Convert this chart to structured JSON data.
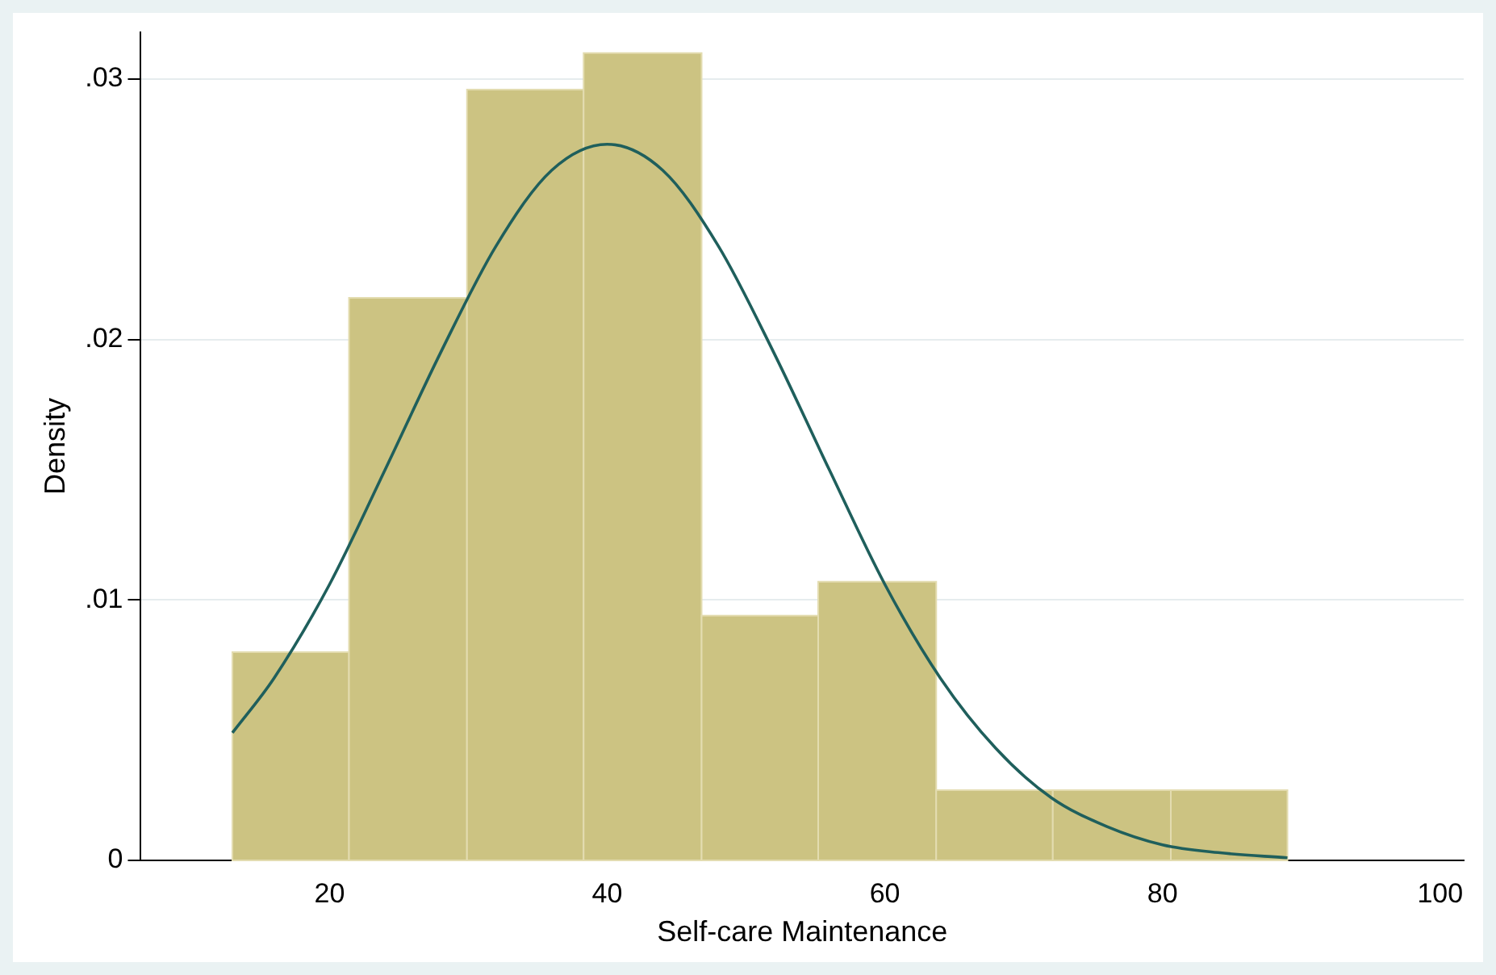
{
  "chart_data": {
    "type": "histogram",
    "xlabel": "Self-care Maintenance",
    "ylabel": "Density",
    "bins": [
      13,
      21.4,
      29.9,
      38.3,
      46.8,
      55.2,
      63.7,
      72.1,
      80.6,
      89.0
    ],
    "values": [
      0.008,
      0.0216,
      0.0296,
      0.031,
      0.0094,
      0.0107,
      0.0027,
      0.0027,
      0.0027
    ],
    "color": "#ccc382",
    "series": [
      {
        "type": "line",
        "color": "#1f5f5c",
        "x": [
          13,
          16,
          20,
          24,
          28,
          32,
          36,
          40,
          44,
          48,
          52,
          56,
          60,
          64,
          68,
          72,
          76,
          80,
          84,
          89
        ],
        "values": [
          0.0049,
          0.007,
          0.0106,
          0.015,
          0.0195,
          0.0236,
          0.0265,
          0.0275,
          0.0265,
          0.0236,
          0.0195,
          0.015,
          0.0106,
          0.007,
          0.0043,
          0.0024,
          0.0013,
          0.0006,
          0.0003,
          0.0001
        ]
      }
    ],
    "xlim": [
      6.4,
      101.7
    ],
    "xticks": [
      20,
      40,
      60,
      80,
      100
    ],
    "ylim": [
      0,
      0.0318
    ],
    "yticks": [
      {
        "value": 0,
        "label": "0"
      },
      {
        "value": 0.01,
        "label": ".01"
      },
      {
        "value": 0.02,
        "label": ".02"
      },
      {
        "value": 0.03,
        "label": ".03"
      }
    ],
    "grid": "y",
    "legend": false
  }
}
